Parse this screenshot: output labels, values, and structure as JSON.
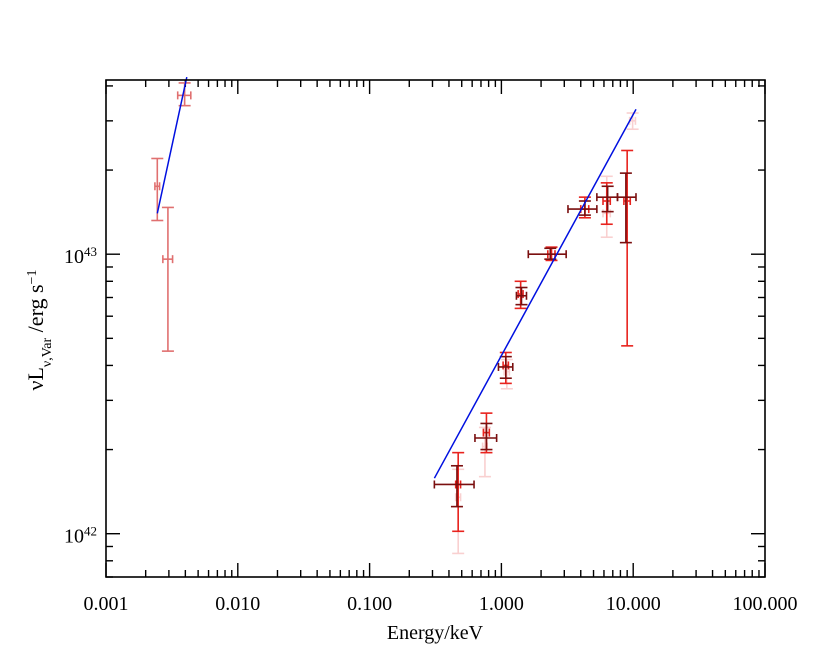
{
  "chart_data": {
    "type": "scatter",
    "xscale": "log",
    "yscale": "log",
    "xlabel": "Energy/keV",
    "ylabel": {
      "prefix": "νL",
      "subscript": "ν,Var",
      "suffix": " /erg s",
      "superscript": "−1"
    },
    "xlim": [
      0.001,
      100.0
    ],
    "ylim": [
      7e+41,
      4.2e+43
    ],
    "xticks": [
      {
        "value": 0.001,
        "label": "0.001"
      },
      {
        "value": 0.01,
        "label": "0.010"
      },
      {
        "value": 0.1,
        "label": "0.100"
      },
      {
        "value": 1.0,
        "label": "1.000"
      },
      {
        "value": 10.0,
        "label": "10.000"
      },
      {
        "value": 100.0,
        "label": "100.000"
      }
    ],
    "yticks": [
      {
        "value": 1e+42,
        "base": "10",
        "exp": "42"
      },
      {
        "value": 1e+43,
        "base": "10",
        "exp": "43"
      }
    ],
    "series": [
      {
        "name": "uv-points",
        "color": "#e07070",
        "points": [
          {
            "x": 0.00245,
            "xerr": [
              0.00235,
              0.00255
            ],
            "y": 1.75e+43,
            "yerr": [
              1.32e+43,
              2.2e+43
            ]
          },
          {
            "x": 0.00295,
            "xerr": [
              0.0027,
              0.0032
            ],
            "y": 9.6e+42,
            "yerr": [
              4.5e+42,
              1.47e+43
            ]
          },
          {
            "x": 0.00395,
            "xerr": [
              0.0035,
              0.0044
            ],
            "y": 3.7e+43,
            "yerr": [
              3.4e+43,
              4.1e+43
            ]
          }
        ]
      },
      {
        "name": "xray-faint",
        "color": "#f9d0d0",
        "points": [
          {
            "x": 0.47,
            "xerr": [
              0.45,
              0.49
            ],
            "y": 1.35e+42,
            "yerr": [
              8.5e+41,
              1.7e+42
            ]
          },
          {
            "x": 0.75,
            "xerr": [
              0.72,
              0.78
            ],
            "y": 2.05e+42,
            "yerr": [
              1.6e+42,
              2.4e+42
            ]
          },
          {
            "x": 1.1,
            "xerr": [
              1.05,
              1.15
            ],
            "y": 3.8e+42,
            "yerr": [
              3.3e+42,
              4.2e+42
            ]
          },
          {
            "x": 6.3,
            "xerr": [
              5.9,
              6.7
            ],
            "y": 1.4e+43,
            "yerr": [
              1.15e+43,
              1.9e+43
            ]
          },
          {
            "x": 9.9,
            "xerr": [
              9.4,
              10.4
            ],
            "y": 3e+43,
            "yerr": [
              2.8e+43,
              3.2e+43
            ]
          }
        ]
      },
      {
        "name": "xray-red",
        "color": "#e8231e",
        "points": [
          {
            "x": 0.47,
            "xerr": [
              0.45,
              0.49
            ],
            "y": 1.5e+42,
            "yerr": [
              1.02e+42,
              1.95e+42
            ]
          },
          {
            "x": 0.77,
            "xerr": [
              0.73,
              0.81
            ],
            "y": 2.3e+42,
            "yerr": [
              1.95e+42,
              2.7e+42
            ]
          },
          {
            "x": 1.08,
            "xerr": [
              1.03,
              1.13
            ],
            "y": 4e+42,
            "yerr": [
              3.45e+42,
              4.45e+42
            ]
          },
          {
            "x": 1.4,
            "xerr": [
              1.34,
              1.46
            ],
            "y": 7.2e+42,
            "yerr": [
              6.4e+42,
              8e+42
            ]
          },
          {
            "x": 2.4,
            "xerr": [
              2.25,
              2.55
            ],
            "y": 1e+43,
            "yerr": [
              9.5e+42,
              1.06e+43
            ]
          },
          {
            "x": 4.3,
            "xerr": [
              4.0,
              4.6
            ],
            "y": 1.45e+43,
            "yerr": [
              1.35e+43,
              1.6e+43
            ]
          },
          {
            "x": 6.3,
            "xerr": [
              5.9,
              6.7
            ],
            "y": 1.55e+43,
            "yerr": [
              1.28e+43,
              1.8e+43
            ]
          },
          {
            "x": 9.0,
            "xerr": [
              8.5,
              9.5
            ],
            "y": 1.55e+43,
            "yerr": [
              4.7e+42,
              2.35e+43
            ]
          }
        ]
      },
      {
        "name": "xray-dark",
        "color": "#7a0f0f",
        "points": [
          {
            "x": 0.46,
            "xerr": [
              0.31,
              0.62
            ],
            "y": 1.5e+42,
            "yerr": [
              1.25e+42,
              1.75e+42
            ]
          },
          {
            "x": 0.77,
            "xerr": [
              0.63,
              0.92
            ],
            "y": 2.2e+42,
            "yerr": [
              2e+42,
              2.48e+42
            ]
          },
          {
            "x": 1.08,
            "xerr": [
              0.95,
              1.22
            ],
            "y": 3.95e+42,
            "yerr": [
              3.6e+42,
              4.3e+42
            ]
          },
          {
            "x": 1.42,
            "xerr": [
              1.3,
              1.55
            ],
            "y": 7.1e+42,
            "yerr": [
              6.6e+42,
              7.6e+42
            ]
          },
          {
            "x": 2.35,
            "xerr": [
              1.6,
              3.1
            ],
            "y": 1e+43,
            "yerr": [
              9.6e+42,
              1.05e+43
            ]
          },
          {
            "x": 4.3,
            "xerr": [
              3.2,
              5.3
            ],
            "y": 1.45e+43,
            "yerr": [
              1.38e+43,
              1.55e+43
            ]
          },
          {
            "x": 6.4,
            "xerr": [
              5.3,
              7.6
            ],
            "y": 1.6e+43,
            "yerr": [
              1.42e+43,
              1.75e+43
            ]
          },
          {
            "x": 8.8,
            "xerr": [
              7.6,
              10.5
            ],
            "y": 1.6e+43,
            "yerr": [
              1.1e+43,
              1.95e+43
            ]
          }
        ]
      }
    ],
    "lines": [
      {
        "name": "uv-model",
        "color": "#0010e0",
        "points": [
          [
            0.00245,
            1.4e+43
          ],
          [
            0.0041,
            4.3e+43
          ]
        ]
      },
      {
        "name": "xray-model",
        "color": "#0010e0",
        "points": [
          [
            0.31,
            1.58e+42
          ],
          [
            10.5,
            3.3e+43
          ]
        ]
      }
    ]
  }
}
